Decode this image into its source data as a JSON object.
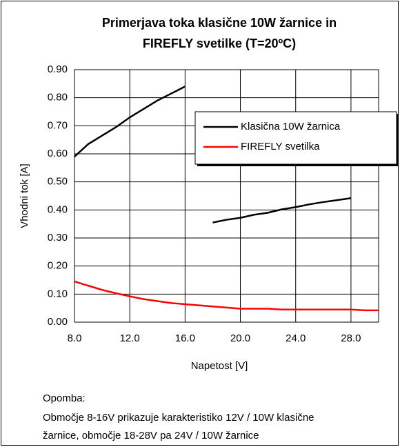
{
  "chart_data": {
    "type": "line",
    "title": [
      "Primerjava toka klasične 10W žarnice in",
      "FIREFLY svetilke (T=20ºC)"
    ],
    "xlabel": "Napetost [V]",
    "ylabel": "Vhodni tok [A]",
    "x": [
      8,
      9,
      10,
      11,
      12,
      13,
      14,
      15,
      16,
      17,
      18,
      19,
      20,
      21,
      22,
      23,
      24,
      25,
      26,
      27,
      28,
      29,
      30
    ],
    "series": [
      {
        "name": "Klasična 10W žarnica",
        "color": "#000000",
        "values": [
          0.59,
          0.635,
          0.665,
          0.695,
          0.73,
          0.76,
          0.79,
          0.815,
          0.84,
          null,
          0.355,
          0.365,
          0.372,
          0.383,
          0.39,
          0.402,
          0.41,
          0.42,
          0.428,
          0.435,
          0.442,
          null,
          null
        ]
      },
      {
        "name": "FIREFLY svetilka",
        "color": "#ff0000",
        "values": [
          0.145,
          0.13,
          0.115,
          0.103,
          0.092,
          0.082,
          0.075,
          0.068,
          0.064,
          0.06,
          0.056,
          0.052,
          0.048,
          0.048,
          0.048,
          0.045,
          0.045,
          0.045,
          0.045,
          0.045,
          0.045,
          0.042,
          0.042
        ]
      }
    ],
    "xlim": [
      8,
      30
    ],
    "xticks": [
      {
        "value": 8,
        "label": "8.0"
      },
      {
        "value": 12,
        "label": "12.0"
      },
      {
        "value": 16,
        "label": "16.0"
      },
      {
        "value": 20,
        "label": "20.0"
      },
      {
        "value": 24,
        "label": "24.0"
      },
      {
        "value": 28,
        "label": "28.0"
      }
    ],
    "ylim": [
      0,
      0.9
    ],
    "yticks": [
      {
        "value": 0,
        "label": "0.00"
      },
      {
        "value": 0.1,
        "label": "0.10"
      },
      {
        "value": 0.2,
        "label": "0.20"
      },
      {
        "value": 0.3,
        "label": "0.30"
      },
      {
        "value": 0.4,
        "label": "0.40"
      },
      {
        "value": 0.5,
        "label": "0.50"
      },
      {
        "value": 0.6,
        "label": "0.60"
      },
      {
        "value": 0.7,
        "label": "0.70"
      },
      {
        "value": 0.8,
        "label": "0.80"
      },
      {
        "value": 0.9,
        "label": "0.90"
      }
    ],
    "grid": true,
    "legend": "upper right",
    "note": [
      "Opomba:",
      "Območje 8-16V prikazuje karakteristiko 12V / 10W klasične",
      "žarnice, območje 18-28V pa 24V / 10W žarnice"
    ]
  }
}
